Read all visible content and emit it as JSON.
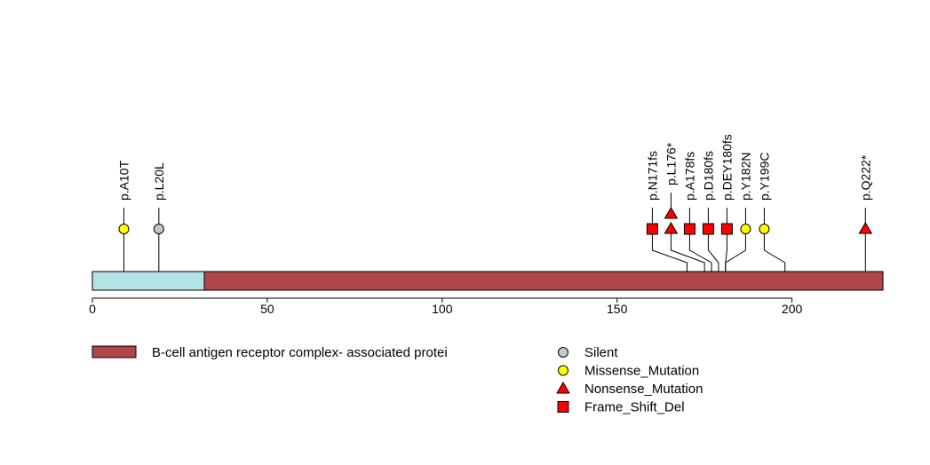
{
  "protein": {
    "length": 226,
    "axis_ticks": [
      0,
      50,
      100,
      150,
      200
    ],
    "backbone_color": "#b0464a",
    "domains": [
      {
        "start": 0,
        "end": 32,
        "color": "#b5e2e4"
      }
    ]
  },
  "mutations": [
    {
      "label": "p.A10T",
      "position": 9,
      "type": "Missense_Mutation"
    },
    {
      "label": "p.L20L",
      "position": 19,
      "type": "Silent"
    },
    {
      "label": "p.N171fs",
      "position": 170,
      "type": "Frame_Shift_Del"
    },
    {
      "label": "p.L176*",
      "position": 175,
      "type": "Nonsense_Mutation",
      "stacked": 2
    },
    {
      "label": "p.A178fs",
      "position": 177,
      "type": "Frame_Shift_Del"
    },
    {
      "label": "p.D180fs",
      "position": 179,
      "type": "Frame_Shift_Del"
    },
    {
      "label": "p.DEY180fs",
      "position": 181,
      "type": "Frame_Shift_Del"
    },
    {
      "label": "p.Y182N",
      "position": 181,
      "type": "Missense_Mutation"
    },
    {
      "label": "p.Y199C",
      "position": 198,
      "type": "Missense_Mutation"
    },
    {
      "label": "p.Q222*",
      "position": 221,
      "type": "Nonsense_Mutation"
    }
  ],
  "legend": {
    "domain_label": "B-cell antigen receptor complex- associated protei",
    "types": [
      {
        "name": "Silent",
        "shape": "circle",
        "color": "#c8c8c8"
      },
      {
        "name": "Missense_Mutation",
        "shape": "circle",
        "color": "#ffff00"
      },
      {
        "name": "Nonsense_Mutation",
        "shape": "triangle",
        "color": "#ff0000"
      },
      {
        "name": "Frame_Shift_Del",
        "shape": "square",
        "color": "#ff0000"
      }
    ]
  }
}
